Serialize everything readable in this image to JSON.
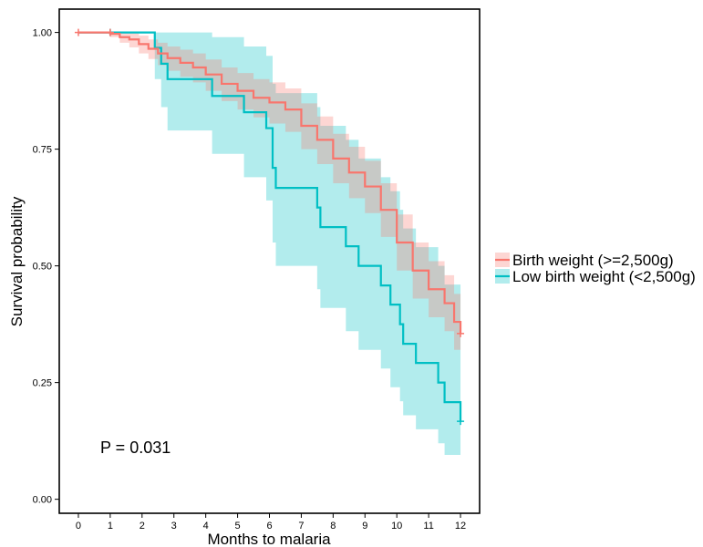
{
  "chart_data": {
    "type": "line",
    "title": "",
    "xlabel": "Months to malaria",
    "ylabel": "Survival probability",
    "xlim": [
      -0.6,
      12.6
    ],
    "ylim": [
      -0.03,
      1.05
    ],
    "x_ticks": [
      0,
      1,
      2,
      3,
      4,
      5,
      6,
      7,
      8,
      9,
      10,
      11,
      12
    ],
    "y_ticks": [
      0.0,
      0.25,
      0.5,
      0.75,
      1.0
    ],
    "y_tick_labels": [
      "0.00",
      "0.25",
      "0.50",
      "0.75",
      "1.00"
    ],
    "grid": false,
    "legend_position": "right",
    "annotation": "P = 0.031",
    "series": [
      {
        "name": "Birth weight (>=2,500g)",
        "color": "#F8766D",
        "band_color": "#F8766D",
        "censor_marks": [
          [
            0.0,
            1.0
          ],
          [
            1.0,
            1.0
          ],
          [
            12.0,
            0.355
          ]
        ],
        "steps": [
          [
            0.0,
            1.0
          ],
          [
            1.0,
            0.997
          ],
          [
            1.3,
            0.99
          ],
          [
            1.6,
            0.985
          ],
          [
            1.9,
            0.975
          ],
          [
            2.2,
            0.965
          ],
          [
            2.5,
            0.955
          ],
          [
            2.8,
            0.945
          ],
          [
            3.2,
            0.935
          ],
          [
            3.6,
            0.925
          ],
          [
            4.0,
            0.91
          ],
          [
            4.5,
            0.89
          ],
          [
            5.0,
            0.875
          ],
          [
            5.5,
            0.86
          ],
          [
            6.0,
            0.85
          ],
          [
            6.5,
            0.835
          ],
          [
            7.0,
            0.8
          ],
          [
            7.5,
            0.77
          ],
          [
            8.0,
            0.73
          ],
          [
            8.5,
            0.7
          ],
          [
            9.0,
            0.67
          ],
          [
            9.5,
            0.62
          ],
          [
            10.0,
            0.55
          ],
          [
            10.5,
            0.49
          ],
          [
            11.0,
            0.45
          ],
          [
            11.5,
            0.42
          ],
          [
            11.8,
            0.38
          ],
          [
            12.0,
            0.355
          ]
        ],
        "lower": [
          [
            0.0,
            1.0
          ],
          [
            1.0,
            0.99
          ],
          [
            1.3,
            0.978
          ],
          [
            1.6,
            0.968
          ],
          [
            1.9,
            0.955
          ],
          [
            2.2,
            0.943
          ],
          [
            2.5,
            0.93
          ],
          [
            2.8,
            0.918
          ],
          [
            3.2,
            0.905
          ],
          [
            3.6,
            0.893
          ],
          [
            4.0,
            0.875
          ],
          [
            4.5,
            0.853
          ],
          [
            5.0,
            0.835
          ],
          [
            5.5,
            0.818
          ],
          [
            6.0,
            0.805
          ],
          [
            6.5,
            0.787
          ],
          [
            7.0,
            0.75
          ],
          [
            7.5,
            0.718
          ],
          [
            8.0,
            0.677
          ],
          [
            8.5,
            0.645
          ],
          [
            9.0,
            0.613
          ],
          [
            9.5,
            0.562
          ],
          [
            10.0,
            0.49
          ],
          [
            10.5,
            0.43
          ],
          [
            11.0,
            0.39
          ],
          [
            11.5,
            0.36
          ],
          [
            11.8,
            0.32
          ],
          [
            12.0,
            0.3
          ]
        ],
        "upper": [
          [
            0.0,
            1.0
          ],
          [
            1.0,
            1.0
          ],
          [
            1.3,
            1.0
          ],
          [
            1.6,
            1.0
          ],
          [
            1.9,
            0.993
          ],
          [
            2.2,
            0.985
          ],
          [
            2.5,
            0.978
          ],
          [
            2.8,
            0.97
          ],
          [
            3.2,
            0.963
          ],
          [
            3.6,
            0.955
          ],
          [
            4.0,
            0.942
          ],
          [
            4.5,
            0.925
          ],
          [
            5.0,
            0.913
          ],
          [
            5.5,
            0.9
          ],
          [
            6.0,
            0.893
          ],
          [
            6.5,
            0.88
          ],
          [
            7.0,
            0.848
          ],
          [
            7.5,
            0.82
          ],
          [
            8.0,
            0.783
          ],
          [
            8.5,
            0.755
          ],
          [
            9.0,
            0.725
          ],
          [
            9.5,
            0.677
          ],
          [
            10.0,
            0.61
          ],
          [
            10.5,
            0.55
          ],
          [
            11.0,
            0.51
          ],
          [
            11.5,
            0.48
          ],
          [
            11.8,
            0.44
          ],
          [
            12.0,
            0.415
          ]
        ]
      },
      {
        "name": "Low birth weight (<2,500g)",
        "color": "#00BFC4",
        "band_color": "#00BFC4",
        "censor_marks": [
          [
            1.0,
            1.0
          ],
          [
            12.0,
            0.167
          ]
        ],
        "steps": [
          [
            0.0,
            1.0
          ],
          [
            2.4,
            0.967
          ],
          [
            2.6,
            0.933
          ],
          [
            2.8,
            0.9
          ],
          [
            4.2,
            0.864
          ],
          [
            5.2,
            0.829
          ],
          [
            5.9,
            0.795
          ],
          [
            6.1,
            0.71
          ],
          [
            6.2,
            0.667
          ],
          [
            7.5,
            0.625
          ],
          [
            7.6,
            0.583
          ],
          [
            8.4,
            0.542
          ],
          [
            8.8,
            0.5
          ],
          [
            9.5,
            0.458
          ],
          [
            9.8,
            0.417
          ],
          [
            10.1,
            0.375
          ],
          [
            10.2,
            0.333
          ],
          [
            10.6,
            0.292
          ],
          [
            11.3,
            0.25
          ],
          [
            11.5,
            0.208
          ],
          [
            12.0,
            0.167
          ]
        ],
        "lower": [
          [
            0.0,
            1.0
          ],
          [
            2.4,
            0.9
          ],
          [
            2.6,
            0.84
          ],
          [
            2.8,
            0.79
          ],
          [
            4.2,
            0.74
          ],
          [
            5.2,
            0.69
          ],
          [
            5.9,
            0.64
          ],
          [
            6.1,
            0.55
          ],
          [
            6.2,
            0.5
          ],
          [
            7.5,
            0.45
          ],
          [
            7.6,
            0.41
          ],
          [
            8.4,
            0.36
          ],
          [
            8.8,
            0.32
          ],
          [
            9.5,
            0.28
          ],
          [
            9.8,
            0.24
          ],
          [
            10.1,
            0.21
          ],
          [
            10.2,
            0.18
          ],
          [
            10.6,
            0.15
          ],
          [
            11.3,
            0.12
          ],
          [
            11.5,
            0.095
          ],
          [
            12.0,
            0.07
          ]
        ],
        "upper": [
          [
            0.0,
            1.0
          ],
          [
            2.4,
            1.0
          ],
          [
            2.6,
            1.0
          ],
          [
            2.8,
            1.0
          ],
          [
            4.2,
            0.99
          ],
          [
            5.2,
            0.97
          ],
          [
            5.9,
            0.95
          ],
          [
            6.1,
            0.89
          ],
          [
            6.2,
            0.87
          ],
          [
            7.5,
            0.84
          ],
          [
            7.6,
            0.8
          ],
          [
            8.4,
            0.77
          ],
          [
            8.8,
            0.73
          ],
          [
            9.5,
            0.69
          ],
          [
            9.8,
            0.66
          ],
          [
            10.1,
            0.62
          ],
          [
            10.2,
            0.58
          ],
          [
            10.6,
            0.54
          ],
          [
            11.3,
            0.5
          ],
          [
            11.5,
            0.46
          ],
          [
            12.0,
            0.43
          ]
        ]
      }
    ]
  }
}
